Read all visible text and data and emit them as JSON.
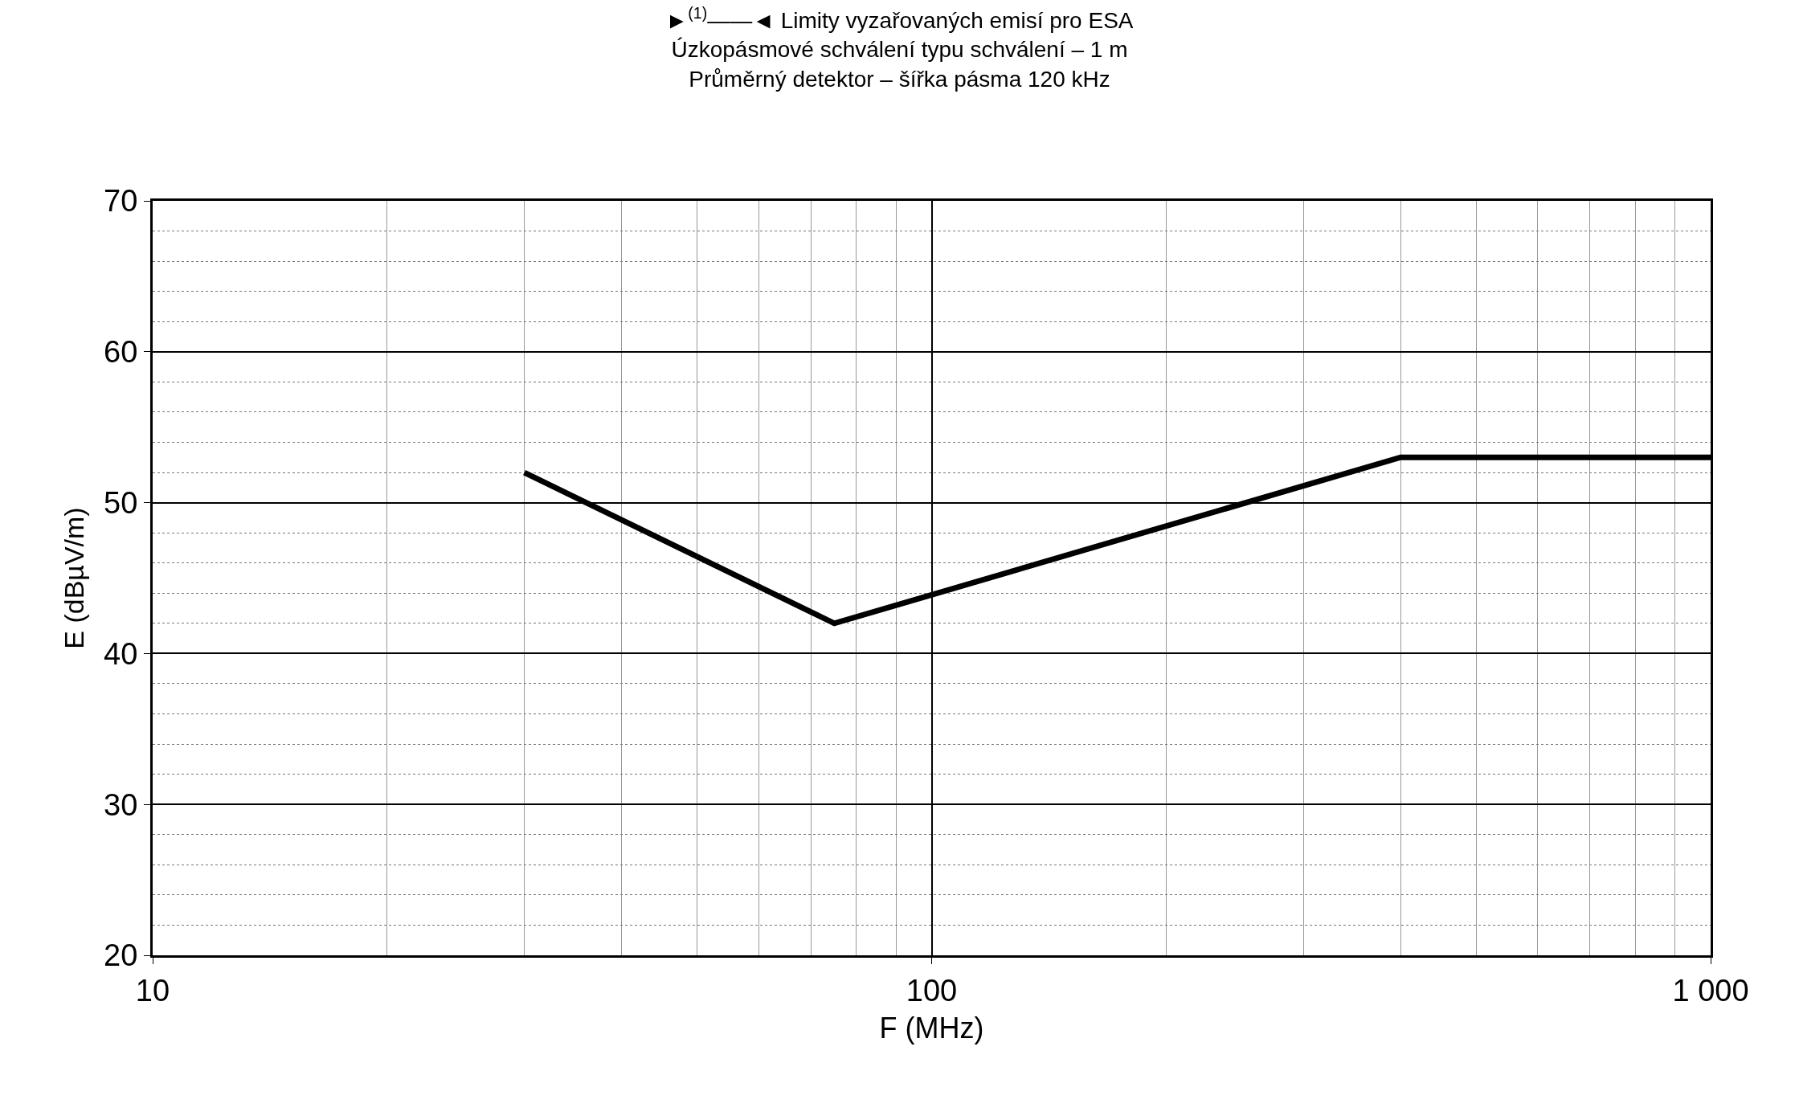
{
  "chart_data": {
    "type": "line",
    "title": "►$^{(1)}$——◄ Limity vyzařovaných emisí pro ESA\nÚzkopásmové schválení typu schválení – 1 m\nPrůměrný detektor – šířka pásma 120 kHz",
    "xlabel": "F (MHz)",
    "ylabel": "E (dBµV/m)",
    "x": [
      30,
      75,
      400,
      1000
    ],
    "series": [
      {
        "color": "#000000",
        "values": [
          52,
          42,
          53,
          53
        ]
      }
    ],
    "log": "x",
    "xlim": [
      10,
      1000
    ],
    "xticks": [
      10,
      100,
      {
        "value": 1000,
        "label": "1 000"
      }
    ],
    "ylim": [
      20,
      70
    ],
    "yticks": [
      20,
      30,
      40,
      50,
      60,
      70
    ],
    "grid": true,
    "marker": "none",
    "line_style": "solid"
  }
}
